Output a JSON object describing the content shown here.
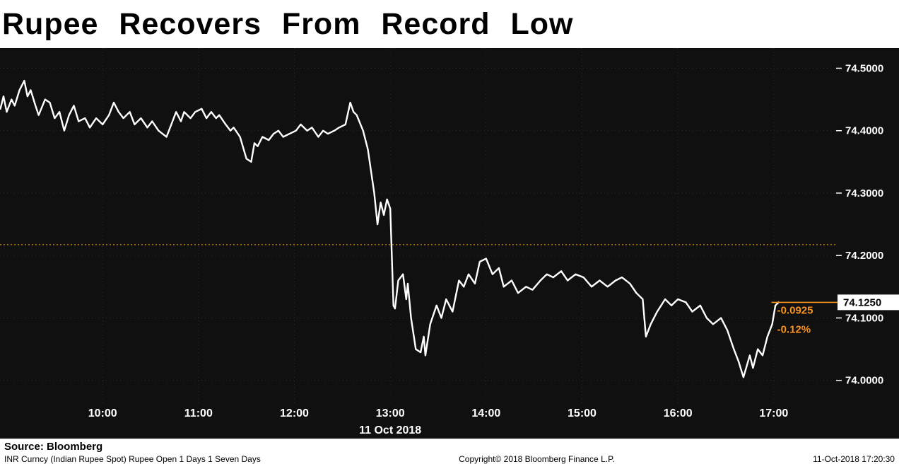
{
  "title": "Rupee Recovers From Record Low",
  "source_label": "Source: Bloomberg",
  "footer": {
    "left": "INR Curncy (Indian Rupee Spot) Rupee Open 1 Days 1 Seven Days",
    "center": "Copyright© 2018 Bloomberg Finance L.P.",
    "right": "11-Oct-2018 17:20:30"
  },
  "chart_data": {
    "type": "line",
    "title": "Rupee Recovers From Record Low",
    "x_axis": {
      "labels": [
        "10:00",
        "11:00",
        "12:00",
        "13:00",
        "14:00",
        "15:00",
        "16:00",
        "17:00"
      ],
      "date_label": "11 Oct 2018",
      "range_hours": [
        8.93,
        17.65
      ]
    },
    "y_axis": {
      "ticks": [
        "74.5000",
        "74.4000",
        "74.3000",
        "74.2000",
        "74.1000",
        "74.0000"
      ],
      "range": [
        73.96,
        74.53
      ]
    },
    "previous_close": 74.2175,
    "last_price": 74.125,
    "last_price_label": "74.1250",
    "change_label": "-0.0925",
    "change_pct_label": "-0.12%",
    "colors": {
      "line": "#ffffff",
      "prev_close": "#c07f0e",
      "annotation": "#f79420",
      "background": "#101010",
      "grid": "#2b2b2b"
    },
    "series": [
      {
        "name": "INR Curncy (Indian Rupee Spot)",
        "points": [
          [
            "08:56",
            74.435
          ],
          [
            "08:58",
            74.455
          ],
          [
            "09:00",
            74.43
          ],
          [
            "09:03",
            74.45
          ],
          [
            "09:05",
            74.44
          ],
          [
            "09:08",
            74.465
          ],
          [
            "09:11",
            74.48
          ],
          [
            "09:13",
            74.455
          ],
          [
            "09:15",
            74.465
          ],
          [
            "09:18",
            74.44
          ],
          [
            "09:20",
            74.425
          ],
          [
            "09:24",
            74.45
          ],
          [
            "09:27",
            74.445
          ],
          [
            "09:30",
            74.42
          ],
          [
            "09:33",
            74.43
          ],
          [
            "09:36",
            74.4
          ],
          [
            "09:39",
            74.425
          ],
          [
            "09:42",
            74.44
          ],
          [
            "09:45",
            74.415
          ],
          [
            "09:49",
            74.42
          ],
          [
            "09:52",
            74.405
          ],
          [
            "09:56",
            74.42
          ],
          [
            "10:00",
            74.41
          ],
          [
            "10:04",
            74.425
          ],
          [
            "10:07",
            74.445
          ],
          [
            "10:10",
            74.43
          ],
          [
            "10:13",
            74.42
          ],
          [
            "10:17",
            74.43
          ],
          [
            "10:20",
            74.41
          ],
          [
            "10:24",
            74.42
          ],
          [
            "10:28",
            74.405
          ],
          [
            "10:31",
            74.415
          ],
          [
            "10:35",
            74.4
          ],
          [
            "10:40",
            74.39
          ],
          [
            "10:43",
            74.41
          ],
          [
            "10:46",
            74.43
          ],
          [
            "10:49",
            74.415
          ],
          [
            "10:51",
            74.43
          ],
          [
            "10:55",
            74.42
          ],
          [
            "10:58",
            74.43
          ],
          [
            "11:02",
            74.435
          ],
          [
            "11:05",
            74.42
          ],
          [
            "11:08",
            74.43
          ],
          [
            "11:11",
            74.42
          ],
          [
            "11:13",
            74.425
          ],
          [
            "11:17",
            74.41
          ],
          [
            "11:20",
            74.4
          ],
          [
            "11:22",
            74.405
          ],
          [
            "11:26",
            74.39
          ],
          [
            "11:30",
            74.355
          ],
          [
            "11:33",
            74.35
          ],
          [
            "11:35",
            74.38
          ],
          [
            "11:37",
            74.375
          ],
          [
            "11:40",
            74.39
          ],
          [
            "11:44",
            74.385
          ],
          [
            "11:47",
            74.395
          ],
          [
            "11:50",
            74.4
          ],
          [
            "11:53",
            74.39
          ],
          [
            "11:57",
            74.395
          ],
          [
            "12:01",
            74.4
          ],
          [
            "12:04",
            74.41
          ],
          [
            "12:08",
            74.4
          ],
          [
            "12:11",
            74.405
          ],
          [
            "12:15",
            74.39
          ],
          [
            "12:18",
            74.4
          ],
          [
            "12:21",
            74.395
          ],
          [
            "12:25",
            74.4
          ],
          [
            "12:28",
            74.405
          ],
          [
            "12:32",
            74.41
          ],
          [
            "12:35",
            74.445
          ],
          [
            "12:37",
            74.43
          ],
          [
            "12:39",
            74.425
          ],
          [
            "12:43",
            74.4
          ],
          [
            "12:46",
            74.37
          ],
          [
            "12:50",
            74.3
          ],
          [
            "12:52",
            74.25
          ],
          [
            "12:54",
            74.285
          ],
          [
            "12:56",
            74.265
          ],
          [
            "12:58",
            74.29
          ],
          [
            "13:00",
            74.275
          ],
          [
            "13:02",
            74.12
          ],
          [
            "13:03",
            74.115
          ],
          [
            "13:05",
            74.16
          ],
          [
            "13:08",
            74.17
          ],
          [
            "13:10",
            74.13
          ],
          [
            "13:11",
            74.155
          ],
          [
            "13:13",
            74.1
          ],
          [
            "13:16",
            74.05
          ],
          [
            "13:19",
            74.045
          ],
          [
            "13:21",
            74.07
          ],
          [
            "13:22",
            74.04
          ],
          [
            "13:25",
            74.09
          ],
          [
            "13:29",
            74.12
          ],
          [
            "13:32",
            74.1
          ],
          [
            "13:35",
            74.13
          ],
          [
            "13:39",
            74.11
          ],
          [
            "13:43",
            74.16
          ],
          [
            "13:46",
            74.15
          ],
          [
            "13:49",
            74.17
          ],
          [
            "13:53",
            74.155
          ],
          [
            "13:56",
            74.19
          ],
          [
            "14:00",
            74.195
          ],
          [
            "14:04",
            74.17
          ],
          [
            "14:08",
            74.18
          ],
          [
            "14:11",
            74.15
          ],
          [
            "14:16",
            74.16
          ],
          [
            "14:20",
            74.14
          ],
          [
            "14:25",
            74.15
          ],
          [
            "14:29",
            74.145
          ],
          [
            "14:34",
            74.16
          ],
          [
            "14:38",
            74.17
          ],
          [
            "14:42",
            74.165
          ],
          [
            "14:47",
            74.175
          ],
          [
            "14:51",
            74.16
          ],
          [
            "14:56",
            74.17
          ],
          [
            "15:01",
            74.165
          ],
          [
            "15:06",
            74.15
          ],
          [
            "15:11",
            74.16
          ],
          [
            "15:16",
            74.15
          ],
          [
            "15:21",
            74.16
          ],
          [
            "15:25",
            74.165
          ],
          [
            "15:30",
            74.155
          ],
          [
            "15:34",
            74.14
          ],
          [
            "15:38",
            74.13
          ],
          [
            "15:40",
            74.07
          ],
          [
            "15:43",
            74.09
          ],
          [
            "15:47",
            74.11
          ],
          [
            "15:52",
            74.13
          ],
          [
            "15:56",
            74.12
          ],
          [
            "16:00",
            74.13
          ],
          [
            "16:05",
            74.125
          ],
          [
            "16:09",
            74.11
          ],
          [
            "16:14",
            74.12
          ],
          [
            "16:18",
            74.1
          ],
          [
            "16:22",
            74.09
          ],
          [
            "16:27",
            74.1
          ],
          [
            "16:31",
            74.08
          ],
          [
            "16:35",
            74.05
          ],
          [
            "16:38",
            74.03
          ],
          [
            "16:41",
            74.005
          ],
          [
            "16:45",
            74.04
          ],
          [
            "16:47",
            74.02
          ],
          [
            "16:50",
            74.05
          ],
          [
            "16:53",
            74.04
          ],
          [
            "16:56",
            74.07
          ],
          [
            "16:59",
            74.09
          ],
          [
            "17:01",
            74.12
          ],
          [
            "17:03",
            74.125
          ]
        ]
      }
    ]
  }
}
